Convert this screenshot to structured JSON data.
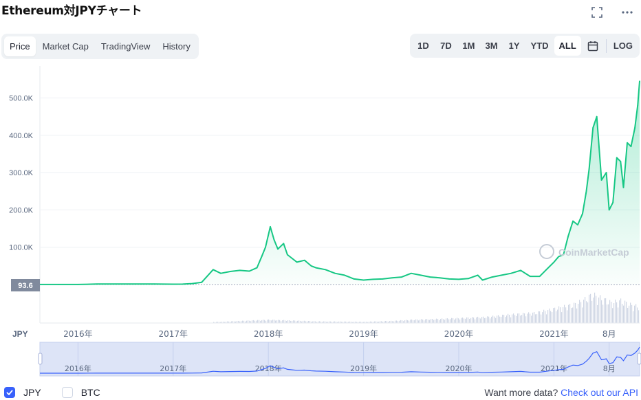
{
  "title": "Ethereum対JPYチャート",
  "tabs": [
    {
      "label": "Price",
      "active": true
    },
    {
      "label": "Market Cap",
      "active": false
    },
    {
      "label": "TradingView",
      "active": false
    },
    {
      "label": "History",
      "active": false
    }
  ],
  "ranges": [
    {
      "label": "1D",
      "active": false
    },
    {
      "label": "7D",
      "active": false
    },
    {
      "label": "1M",
      "active": false
    },
    {
      "label": "3M",
      "active": false
    },
    {
      "label": "1Y",
      "active": false
    },
    {
      "label": "YTD",
      "active": false
    },
    {
      "label": "ALL",
      "active": true
    }
  ],
  "log_label": "LOG",
  "icons": {
    "fullscreen": "fullscreen-icon",
    "more": "more-icon",
    "calendar": "calendar-icon"
  },
  "colors": {
    "line": "#16c784",
    "navigator_line": "#3861fb",
    "accent": "#3861fb",
    "volume": "#cfd6e4",
    "current_tag": "#808a9d"
  },
  "watermark": "CoinMarketCap",
  "legend": [
    {
      "label": "JPY",
      "checked": true
    },
    {
      "label": "BTC",
      "checked": false
    }
  ],
  "currency_label": "JPY",
  "api_note": {
    "text": "Want more data?",
    "link": "Check out our API"
  },
  "chart_data": {
    "type": "area",
    "ylim": [
      0,
      560000
    ],
    "y_ticks": [
      100000,
      200000,
      300000,
      400000,
      500000
    ],
    "y_tick_labels": [
      "100.0K",
      "200.0K",
      "300.0K",
      "400.0K",
      "500.0K"
    ],
    "current_value_label": "93.6",
    "grid": true,
    "x_tick_labels": [
      "2016年",
      "2017年",
      "2018年",
      "2019年",
      "2020年",
      "2021年",
      "8月"
    ],
    "x_tick_positions": [
      2016.0,
      2017.0,
      2018.0,
      2019.0,
      2020.0,
      2021.0,
      2021.58
    ],
    "x_range": [
      2015.6,
      2021.9
    ],
    "series": [
      {
        "name": "JPY",
        "x": [
          2015.6,
          2015.8,
          2016.0,
          2016.2,
          2016.4,
          2016.6,
          2016.8,
          2017.0,
          2017.1,
          2017.2,
          2017.3,
          2017.35,
          2017.42,
          2017.5,
          2017.6,
          2017.7,
          2017.8,
          2017.88,
          2017.93,
          2017.97,
          2018.02,
          2018.06,
          2018.1,
          2018.16,
          2018.2,
          2018.25,
          2018.3,
          2018.38,
          2018.45,
          2018.5,
          2018.6,
          2018.7,
          2018.8,
          2018.9,
          2019.0,
          2019.1,
          2019.2,
          2019.3,
          2019.4,
          2019.5,
          2019.6,
          2019.7,
          2019.8,
          2019.9,
          2020.0,
          2020.1,
          2020.2,
          2020.25,
          2020.35,
          2020.45,
          2020.55,
          2020.65,
          2020.75,
          2020.85,
          2020.92,
          2021.0,
          2021.05,
          2021.1,
          2021.15,
          2021.2,
          2021.25,
          2021.3,
          2021.34,
          2021.37,
          2021.41,
          2021.45,
          2021.5,
          2021.55,
          2021.58,
          2021.62,
          2021.66,
          2021.7,
          2021.73,
          2021.77,
          2021.81,
          2021.85,
          2021.88,
          2021.9
        ],
        "values": [
          93.6,
          100,
          120,
          1200,
          1400,
          1300,
          1250,
          1000,
          1100,
          2500,
          6000,
          20000,
          40000,
          30000,
          35000,
          38000,
          36000,
          45000,
          75000,
          100000,
          155000,
          120000,
          95000,
          110000,
          80000,
          70000,
          60000,
          65000,
          50000,
          45000,
          40000,
          30000,
          25000,
          15000,
          12000,
          14000,
          15000,
          18000,
          20000,
          30000,
          25000,
          20000,
          18000,
          15000,
          14000,
          16000,
          25000,
          12000,
          20000,
          25000,
          30000,
          38000,
          22000,
          22000,
          40000,
          60000,
          75000,
          80000,
          130000,
          170000,
          160000,
          190000,
          250000,
          310000,
          420000,
          450000,
          280000,
          300000,
          200000,
          220000,
          340000,
          330000,
          260000,
          380000,
          370000,
          420000,
          480000,
          545000
        ]
      }
    ],
    "volume": {
      "x": [
        2016.0,
        2016.5,
        2017.0,
        2017.5,
        2018.0,
        2018.5,
        2019.0,
        2019.3,
        2019.5,
        2019.8,
        2020.0,
        2020.3,
        2020.5,
        2020.8,
        2021.0,
        2021.2,
        2021.3,
        2021.4,
        2021.5,
        2021.6,
        2021.7,
        2021.8,
        2021.9
      ],
      "values": [
        0.5,
        0.8,
        1,
        3,
        8,
        4,
        3,
        5,
        8,
        10,
        12,
        15,
        20,
        25,
        35,
        45,
        55,
        70,
        60,
        50,
        55,
        45,
        40
      ]
    }
  }
}
